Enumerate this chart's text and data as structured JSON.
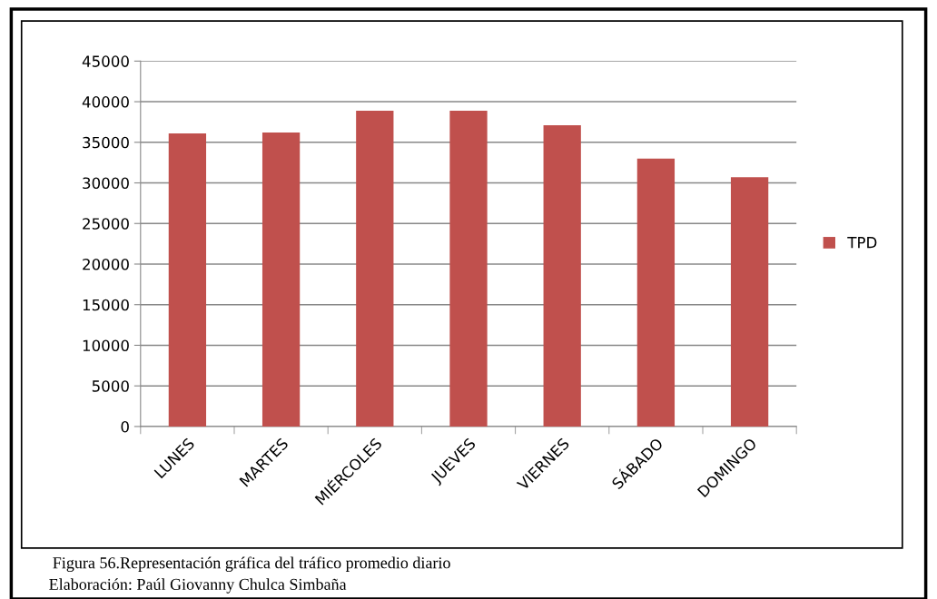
{
  "chart_data": {
    "type": "bar",
    "categories": [
      "LUNES",
      "MARTES",
      "MIÉRCOLES",
      "JUEVES",
      "VIERNES",
      "SÁBADO",
      "DOMINGO"
    ],
    "series": [
      {
        "name": "TPD",
        "color": "#c0504d",
        "values": [
          36100,
          36200,
          38900,
          38900,
          37100,
          33000,
          30700
        ]
      }
    ],
    "ylim": [
      0,
      45000
    ],
    "yticks": [
      0,
      5000,
      10000,
      15000,
      20000,
      25000,
      30000,
      35000,
      40000,
      45000
    ],
    "grid": "y",
    "legend": "right",
    "annotations": [
      "Figura 56.Representación gráfica del tráfico promedio diario",
      "Elaboración: Paúl Giovanny Chulca Simbaña"
    ]
  }
}
